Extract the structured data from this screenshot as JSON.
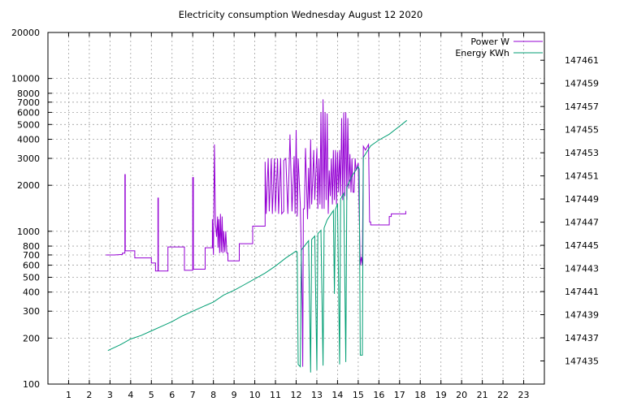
{
  "chart_data": {
    "type": "line",
    "title": "Electricity consumption Wednesday August 12 2020",
    "x_axis": {
      "range": [
        0,
        24
      ],
      "ticks": [
        1,
        2,
        3,
        4,
        5,
        6,
        7,
        8,
        9,
        10,
        11,
        12,
        13,
        14,
        15,
        16,
        17,
        18,
        19,
        20,
        21,
        22,
        23
      ],
      "tick_labels": [
        "1",
        "2",
        "3",
        "4",
        "5",
        "6",
        "7",
        "8",
        "9",
        "10",
        "11",
        "12",
        "13",
        "14",
        "15",
        "16",
        "17",
        "18",
        "19",
        "20",
        "21",
        "22",
        "23"
      ],
      "grid": true
    },
    "y_axis_left": {
      "scale": "log",
      "range": [
        100,
        20000
      ],
      "ticks": [
        100,
        200,
        300,
        400,
        500,
        600,
        700,
        800,
        1000,
        2000,
        3000,
        4000,
        5000,
        6000,
        7000,
        8000,
        10000,
        20000
      ],
      "tick_labels": [
        "100",
        "200",
        "300",
        "400",
        "500",
        "600",
        "700",
        "800",
        "1000",
        "2000",
        "3000",
        "4000",
        "5000",
        "6000",
        "7000",
        "8000",
        "10000",
        "20000"
      ],
      "grid": true
    },
    "y_axis_right": {
      "scale": "linear",
      "range": [
        147433.0,
        147463.4
      ],
      "ticks": [
        147435,
        147437,
        147439,
        147441,
        147443,
        147445,
        147447,
        147449,
        147451,
        147453,
        147455,
        147457,
        147459,
        147461
      ],
      "tick_labels": [
        "147435",
        "147437",
        "147439",
        "147441",
        "147443",
        "147445",
        "147447",
        "147449",
        "147451",
        "147453",
        "147455",
        "147457",
        "147459",
        "147461"
      ]
    },
    "legend": {
      "placement": "top-right"
    },
    "series": [
      {
        "name": "Power W",
        "axis": "left",
        "color": "#9400d3",
        "points": [
          [
            2.8,
            700
          ],
          [
            3.2,
            700
          ],
          [
            3.6,
            705
          ],
          [
            3.6,
            720
          ],
          [
            3.72,
            720
          ],
          [
            3.72,
            2350
          ],
          [
            3.74,
            2350
          ],
          [
            3.74,
            745
          ],
          [
            4.2,
            745
          ],
          [
            4.2,
            670
          ],
          [
            5.0,
            670
          ],
          [
            5.0,
            620
          ],
          [
            5.2,
            620
          ],
          [
            5.2,
            550
          ],
          [
            5.32,
            550
          ],
          [
            5.32,
            1650
          ],
          [
            5.34,
            1650
          ],
          [
            5.34,
            550
          ],
          [
            5.8,
            550
          ],
          [
            5.8,
            790
          ],
          [
            6.6,
            790
          ],
          [
            6.6,
            555
          ],
          [
            7.0,
            555
          ],
          [
            7.0,
            2250
          ],
          [
            7.03,
            2250
          ],
          [
            7.03,
            565
          ],
          [
            7.6,
            565
          ],
          [
            7.6,
            780
          ],
          [
            7.95,
            780
          ],
          [
            7.95,
            1200
          ],
          [
            8.0,
            700
          ],
          [
            8.05,
            3700
          ],
          [
            8.1,
            1100
          ],
          [
            8.12,
            1050
          ],
          [
            8.15,
            920
          ],
          [
            8.2,
            1250
          ],
          [
            8.22,
            780
          ],
          [
            8.26,
            1200
          ],
          [
            8.3,
            720
          ],
          [
            8.34,
            1300
          ],
          [
            8.38,
            730
          ],
          [
            8.42,
            1250
          ],
          [
            8.46,
            720
          ],
          [
            8.5,
            1000
          ],
          [
            8.55,
            730
          ],
          [
            8.6,
            1000
          ],
          [
            8.65,
            720
          ],
          [
            8.7,
            720
          ],
          [
            8.7,
            640
          ],
          [
            9.25,
            640
          ],
          [
            9.25,
            830
          ],
          [
            9.9,
            830
          ],
          [
            9.9,
            1080
          ],
          [
            10.5,
            1080
          ],
          [
            10.5,
            2100
          ],
          [
            10.5,
            2850
          ],
          [
            10.55,
            1300
          ],
          [
            10.65,
            3000
          ],
          [
            10.7,
            1350
          ],
          [
            10.8,
            3000
          ],
          [
            10.85,
            1300
          ],
          [
            10.95,
            3000
          ],
          [
            11.0,
            1350
          ],
          [
            11.1,
            3000
          ],
          [
            11.15,
            1300
          ],
          [
            11.25,
            3000
          ],
          [
            11.3,
            1300
          ],
          [
            11.4,
            1350
          ],
          [
            11.4,
            2900
          ],
          [
            11.5,
            3000
          ],
          [
            11.6,
            1300
          ],
          [
            11.7,
            4300
          ],
          [
            11.8,
            1350
          ],
          [
            11.9,
            3100
          ],
          [
            11.95,
            1300
          ],
          [
            12.0,
            4600
          ],
          [
            12.05,
            1250
          ],
          [
            12.1,
            3000
          ],
          [
            12.2,
            1500
          ],
          [
            12.25,
            700
          ],
          [
            12.3,
            300
          ],
          [
            12.32,
            130
          ],
          [
            12.35,
            1400
          ],
          [
            12.4,
            1400
          ],
          [
            12.45,
            3500
          ],
          [
            12.55,
            1200
          ],
          [
            12.6,
            2600
          ],
          [
            12.65,
            1400
          ],
          [
            12.7,
            4000
          ],
          [
            12.75,
            1500
          ],
          [
            12.8,
            2200
          ],
          [
            12.85,
            3400
          ],
          [
            12.9,
            1600
          ],
          [
            13.0,
            3500
          ],
          [
            13.05,
            1400
          ],
          [
            13.1,
            3000
          ],
          [
            13.15,
            1500
          ],
          [
            13.2,
            6000
          ],
          [
            13.25,
            1400
          ],
          [
            13.3,
            7300
          ],
          [
            13.35,
            1400
          ],
          [
            13.4,
            6000
          ],
          [
            13.45,
            1600
          ],
          [
            13.5,
            5900
          ],
          [
            13.55,
            1300
          ],
          [
            13.6,
            2500
          ],
          [
            13.65,
            1700
          ],
          [
            13.7,
            3000
          ],
          [
            13.75,
            1500
          ],
          [
            13.8,
            3400
          ],
          [
            13.85,
            1600
          ],
          [
            13.9,
            3400
          ],
          [
            13.95,
            1500
          ],
          [
            14.0,
            3300
          ],
          [
            14.05,
            1800
          ],
          [
            14.1,
            3400
          ],
          [
            14.15,
            1700
          ],
          [
            14.2,
            5500
          ],
          [
            14.25,
            1600
          ],
          [
            14.3,
            6000
          ],
          [
            14.35,
            1700
          ],
          [
            14.4,
            6000
          ],
          [
            14.45,
            1600
          ],
          [
            14.5,
            5500
          ],
          [
            14.55,
            1900
          ],
          [
            14.6,
            3200
          ],
          [
            14.65,
            1800
          ],
          [
            14.7,
            3000
          ],
          [
            14.75,
            1800
          ],
          [
            14.8,
            1800
          ],
          [
            14.85,
            3000
          ],
          [
            14.9,
            2500
          ],
          [
            15.0,
            2800
          ],
          [
            15.1,
            600
          ],
          [
            15.15,
            680
          ],
          [
            15.2,
            600
          ],
          [
            15.25,
            3600
          ],
          [
            15.35,
            3400
          ],
          [
            15.5,
            3700
          ],
          [
            15.55,
            1150
          ],
          [
            15.6,
            1150
          ],
          [
            15.6,
            1100
          ],
          [
            16.5,
            1100
          ],
          [
            16.5,
            1250
          ],
          [
            16.6,
            1250
          ],
          [
            16.6,
            1300
          ],
          [
            17.3,
            1300
          ],
          [
            17.3,
            1360
          ]
        ]
      },
      {
        "name": "Energy KWh",
        "axis": "right",
        "color": "#009e73",
        "points": [
          [
            2.9,
            147435.9
          ],
          [
            3.5,
            147436.4
          ],
          [
            4.0,
            147436.9
          ],
          [
            4.5,
            147437.2
          ],
          [
            5.0,
            147437.6
          ],
          [
            5.5,
            147438.0
          ],
          [
            6.0,
            147438.4
          ],
          [
            6.5,
            147438.9
          ],
          [
            7.0,
            147439.3
          ],
          [
            7.5,
            147439.7
          ],
          [
            8.0,
            147440.1
          ],
          [
            8.5,
            147440.7
          ],
          [
            9.0,
            147441.1
          ],
          [
            9.5,
            147441.6
          ],
          [
            10.0,
            147442.1
          ],
          [
            10.5,
            147442.6
          ],
          [
            11.0,
            147443.2
          ],
          [
            11.5,
            147443.9
          ],
          [
            12.0,
            147444.5
          ],
          [
            12.05,
            147444.4
          ],
          [
            12.1,
            147434.7
          ],
          [
            12.2,
            147434.5
          ],
          [
            12.25,
            147444.6
          ],
          [
            12.6,
            147445.4
          ],
          [
            12.7,
            147434.0
          ],
          [
            12.75,
            147445.5
          ],
          [
            12.9,
            147445.8
          ],
          [
            13.0,
            147434.2
          ],
          [
            13.05,
            147446.0
          ],
          [
            13.2,
            147446.3
          ],
          [
            13.3,
            147434.6
          ],
          [
            13.35,
            147446.5
          ],
          [
            13.5,
            147447.2
          ],
          [
            13.8,
            147448.0
          ],
          [
            13.85,
            147440.8
          ],
          [
            13.9,
            147448.1
          ],
          [
            14.0,
            147448.6
          ],
          [
            14.1,
            147434.7
          ],
          [
            14.15,
            147449.0
          ],
          [
            14.3,
            147449.5
          ],
          [
            14.4,
            147434.9
          ],
          [
            14.45,
            147450.0
          ],
          [
            14.7,
            147451.0
          ],
          [
            15.0,
            147451.8
          ],
          [
            15.05,
            147451.6
          ],
          [
            15.1,
            147435.5
          ],
          [
            15.2,
            147435.5
          ],
          [
            15.25,
            147452.6
          ],
          [
            15.6,
            147453.6
          ],
          [
            16.0,
            147454.1
          ],
          [
            16.5,
            147454.6
          ],
          [
            17.0,
            147455.3
          ],
          [
            17.35,
            147455.8
          ]
        ]
      }
    ]
  }
}
